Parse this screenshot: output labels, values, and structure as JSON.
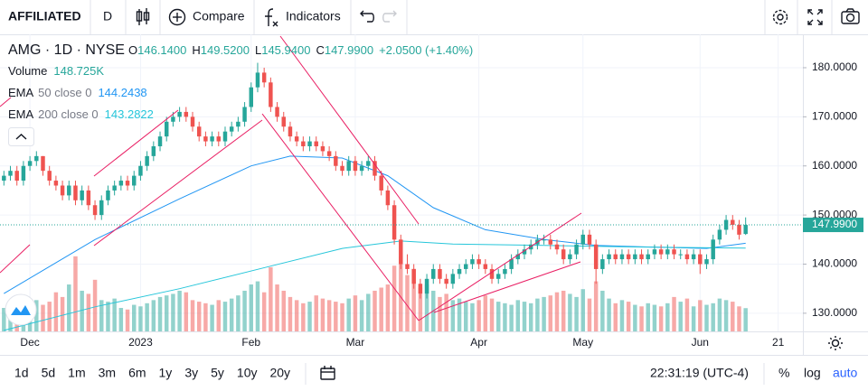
{
  "toolbar": {
    "symbol": "AFFILIATED",
    "interval": "D",
    "compare": "Compare",
    "indicators": "Indicators"
  },
  "chart_data": {
    "type": "candlestick",
    "title": "AMG · 1D · NYSE",
    "legend": [
      [
        "O",
        "146.1400"
      ],
      [
        "H",
        "149.5200"
      ],
      [
        "L",
        "145.9400"
      ],
      [
        "C",
        "147.9900"
      ]
    ],
    "change": "+2.0500 (+1.40%)",
    "up_color": "#26a69a",
    "down_color": "#ef5350",
    "ohlc": [
      [
        157,
        159,
        156,
        158
      ],
      [
        158,
        160,
        157,
        159
      ],
      [
        159,
        160,
        156,
        157
      ],
      [
        157,
        161,
        156,
        160
      ],
      [
        160,
        162,
        159,
        161
      ],
      [
        161,
        163,
        160,
        162
      ],
      [
        162,
        162,
        158,
        159
      ],
      [
        159,
        160,
        156,
        157
      ],
      [
        157,
        158,
        155,
        156
      ],
      [
        156,
        157,
        153,
        154
      ],
      [
        154,
        157,
        153,
        156
      ],
      [
        156,
        157,
        152,
        153
      ],
      [
        153,
        156,
        152,
        155
      ],
      [
        155,
        156,
        151,
        152
      ],
      [
        152,
        153,
        149,
        150
      ],
      [
        150,
        154,
        149,
        153
      ],
      [
        153,
        156,
        152,
        155
      ],
      [
        155,
        157,
        154,
        156
      ],
      [
        156,
        158,
        155,
        157
      ],
      [
        157,
        158,
        155,
        156
      ],
      [
        156,
        159,
        155,
        158
      ],
      [
        158,
        161,
        157,
        160
      ],
      [
        160,
        163,
        159,
        162
      ],
      [
        162,
        165,
        161,
        164
      ],
      [
        164,
        167,
        163,
        166
      ],
      [
        166,
        170,
        165,
        169
      ],
      [
        169,
        171,
        168,
        170
      ],
      [
        170,
        172,
        169,
        171
      ],
      [
        171,
        172,
        169,
        170
      ],
      [
        170,
        171,
        167,
        168
      ],
      [
        168,
        169,
        165,
        166
      ],
      [
        166,
        167,
        164,
        165
      ],
      [
        165,
        167,
        164,
        166
      ],
      [
        166,
        167,
        164,
        165
      ],
      [
        165,
        168,
        164,
        167
      ],
      [
        167,
        169,
        166,
        168
      ],
      [
        168,
        170,
        167,
        169
      ],
      [
        169,
        173,
        168,
        172
      ],
      [
        172,
        177,
        171,
        176
      ],
      [
        176,
        181,
        175,
        179
      ],
      [
        179,
        180,
        176,
        177
      ],
      [
        177,
        178,
        171,
        172
      ],
      [
        172,
        173,
        169,
        170
      ],
      [
        170,
        171,
        167,
        168
      ],
      [
        168,
        169,
        165,
        166
      ],
      [
        166,
        167,
        164,
        165
      ],
      [
        165,
        166,
        163,
        164
      ],
      [
        164,
        166,
        163,
        165
      ],
      [
        165,
        166,
        163,
        164
      ],
      [
        164,
        165,
        162,
        163
      ],
      [
        163,
        164,
        161,
        162
      ],
      [
        162,
        163,
        159,
        160
      ],
      [
        160,
        161,
        158,
        159
      ],
      [
        159,
        162,
        158,
        161
      ],
      [
        161,
        162,
        158,
        159
      ],
      [
        159,
        161,
        158,
        160
      ],
      [
        160,
        162,
        159,
        161
      ],
      [
        161,
        162,
        157,
        158
      ],
      [
        158,
        159,
        154,
        155
      ],
      [
        155,
        156,
        151,
        152
      ],
      [
        152,
        153,
        144,
        145
      ],
      [
        145,
        146,
        139,
        140
      ],
      [
        140,
        142,
        138,
        139
      ],
      [
        139,
        140,
        135,
        136
      ],
      [
        136,
        137,
        133,
        134
      ],
      [
        134,
        138,
        133,
        137
      ],
      [
        137,
        140,
        136,
        139
      ],
      [
        139,
        140,
        136,
        137
      ],
      [
        137,
        138,
        135,
        136
      ],
      [
        136,
        139,
        135,
        138
      ],
      [
        138,
        140,
        137,
        139
      ],
      [
        139,
        141,
        138,
        140
      ],
      [
        140,
        142,
        139,
        141
      ],
      [
        141,
        142,
        139,
        140
      ],
      [
        140,
        141,
        138,
        139
      ],
      [
        139,
        140,
        136,
        137
      ],
      [
        137,
        139,
        136,
        138
      ],
      [
        138,
        140,
        137,
        139
      ],
      [
        139,
        142,
        138,
        141
      ],
      [
        141,
        143,
        140,
        142
      ],
      [
        142,
        144,
        141,
        143
      ],
      [
        143,
        145,
        142,
        144
      ],
      [
        144,
        146,
        143,
        145
      ],
      [
        145,
        146,
        144,
        145
      ],
      [
        145,
        146,
        143,
        144
      ],
      [
        144,
        145,
        142,
        143
      ],
      [
        143,
        144,
        140,
        141
      ],
      [
        141,
        143,
        140,
        142
      ],
      [
        142,
        145,
        141,
        144
      ],
      [
        144,
        147,
        143,
        146
      ],
      [
        146,
        147,
        143,
        144
      ],
      [
        144,
        145,
        136,
        139
      ],
      [
        139,
        142,
        138,
        141
      ],
      [
        141,
        143,
        140,
        142
      ],
      [
        142,
        143,
        140,
        141
      ],
      [
        141,
        143,
        140,
        142
      ],
      [
        142,
        143,
        140,
        141
      ],
      [
        141,
        143,
        140,
        142
      ],
      [
        142,
        143,
        140,
        141
      ],
      [
        141,
        143,
        140,
        142
      ],
      [
        142,
        144,
        141,
        143
      ],
      [
        143,
        144,
        141,
        142
      ],
      [
        142,
        144,
        141,
        143
      ],
      [
        143,
        144,
        141,
        142
      ],
      [
        142,
        143,
        141,
        142
      ],
      [
        142,
        143,
        140,
        141
      ],
      [
        141,
        143,
        140,
        142
      ],
      [
        142,
        143,
        138,
        140
      ],
      [
        140,
        142,
        139,
        141
      ],
      [
        141,
        146,
        140,
        145
      ],
      [
        145,
        148,
        144,
        147
      ],
      [
        147,
        150,
        146,
        149
      ],
      [
        149,
        150,
        147,
        148
      ],
      [
        148,
        149,
        145,
        146
      ],
      [
        146.14,
        149.52,
        145.94,
        147.99
      ]
    ],
    "volume_name": "Volume",
    "volume_label": "148.725K",
    "volume": [
      150000,
      120000,
      230000,
      180000,
      160000,
      200000,
      170000,
      190000,
      250000,
      220000,
      300000,
      480000,
      260000,
      240000,
      330000,
      200000,
      190000,
      210000,
      150000,
      140000,
      170000,
      160000,
      180000,
      200000,
      220000,
      230000,
      240000,
      260000,
      250000,
      200000,
      190000,
      180000,
      170000,
      200000,
      190000,
      210000,
      230000,
      260000,
      300000,
      320000,
      250000,
      410000,
      300000,
      260000,
      220000,
      200000,
      180000,
      190000,
      230000,
      210000,
      200000,
      190000,
      180000,
      210000,
      230000,
      200000,
      240000,
      260000,
      280000,
      300000,
      420000,
      480000,
      360000,
      400000,
      280000,
      300000,
      260000,
      220000,
      240000,
      200000,
      210000,
      190000,
      180000,
      200000,
      230000,
      210000,
      190000,
      180000,
      170000,
      200000,
      190000,
      180000,
      210000,
      220000,
      230000,
      250000,
      260000,
      240000,
      220000,
      270000,
      210000,
      320000,
      260000,
      210000,
      180000,
      200000,
      190000,
      170000,
      160000,
      180000,
      170000,
      160000,
      180000,
      220000,
      190000,
      210000,
      160000,
      200000,
      170000,
      180000,
      210000,
      200000,
      190000,
      160000,
      148725
    ],
    "vlim": [
      0,
      560000
    ],
    "series": [
      {
        "name": "EMA",
        "params": "50 close 0",
        "value_label": "144.2438",
        "color": "#2196f3",
        "x": [
          0,
          14,
          27,
          38,
          44,
          52,
          59,
          66,
          74,
          83,
          91,
          99,
          108,
          114
        ],
        "values": [
          134,
          145,
          153.3,
          160,
          162,
          161.6,
          158,
          151.5,
          147,
          145,
          143.8,
          143.5,
          143.2,
          144.24
        ]
      },
      {
        "name": "EMA",
        "params": "200 close 0",
        "value_label": "143.2822",
        "color": "#26c6da",
        "x": [
          0,
          14,
          27,
          41,
          52,
          61,
          69,
          83,
          97,
          114
        ],
        "values": [
          126.5,
          131.3,
          135,
          139.6,
          143.2,
          144.7,
          144.1,
          143.8,
          143.5,
          143.28
        ]
      }
    ],
    "last_price": {
      "value": 147.99,
      "label": "147.9900"
    },
    "xlim": [
      -0.6,
      122.8
    ],
    "xticks": [
      {
        "value": 4,
        "label": "Dec"
      },
      {
        "value": 21,
        "label": "2023"
      },
      {
        "value": 38,
        "label": "Feb"
      },
      {
        "value": 54,
        "label": "Mar"
      },
      {
        "value": 73,
        "label": "Apr"
      },
      {
        "value": 89,
        "label": "May"
      },
      {
        "value": 107,
        "label": "Jun"
      },
      {
        "value": 119,
        "label": "21"
      }
    ],
    "ylim": [
      126.3,
      186.8
    ],
    "yticks": [
      {
        "value": 130,
        "label": "130.0000"
      },
      {
        "value": 140,
        "label": "140.0000"
      },
      {
        "value": 150,
        "label": "150.0000"
      },
      {
        "value": 160,
        "label": "160.0000"
      },
      {
        "value": 170,
        "label": "170.0000"
      },
      {
        "value": 180,
        "label": "180.0000"
      }
    ],
    "grid": true
  },
  "footer": {
    "ranges": [
      "1d",
      "5d",
      "1m",
      "3m",
      "6m",
      "1y",
      "3y",
      "5y",
      "10y",
      "20y"
    ],
    "time": "22:31:19 (UTC-4)",
    "percent": "%",
    "log": "log",
    "auto": "auto"
  }
}
